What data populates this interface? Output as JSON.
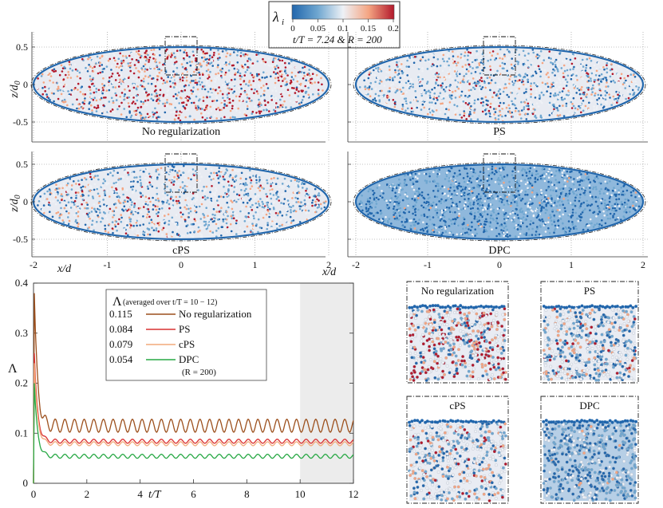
{
  "colorbar": {
    "label": "λ",
    "label_sub": "i",
    "ticks": [
      "0",
      "0.05",
      "0.1",
      "0.15",
      "0.2"
    ],
    "caption": "t/T = 7.24 & R = 200",
    "colors": [
      "#2166ac",
      "#6ea6d0",
      "#eef1f6",
      "#f4a582",
      "#b2182b"
    ]
  },
  "panels": {
    "titles": [
      "No regularization",
      "PS",
      "cPS",
      "DPC"
    ],
    "mean_lambda": [
      0.115,
      0.084,
      0.079,
      0.054
    ],
    "y_ticks": [
      "0.5",
      "0",
      "-0.5"
    ],
    "x_ticks": [
      "-2",
      "-1",
      "0",
      "1",
      "2"
    ],
    "x_label": "x/d",
    "y_label": "z/d",
    "y_label_sub": "0"
  },
  "zoom_titles": [
    "No regularization",
    "PS",
    "cPS",
    "DPC"
  ],
  "chart_data": {
    "type": "line",
    "title": "",
    "xlabel": "t/T",
    "ylabel": "Λ",
    "xlim": [
      0,
      12
    ],
    "ylim": [
      0,
      0.4
    ],
    "x_ticks": [
      "0",
      "2",
      "4",
      "6",
      "8",
      "10",
      "12"
    ],
    "y_ticks": [
      "0",
      "0.1",
      "0.2",
      "0.3",
      "0.4"
    ],
    "shaded_interval": [
      10,
      12
    ],
    "legend_title": "Λ",
    "legend_title_note": "(averaged over t/T = 10 − 12)",
    "legend_note": "(R = 200)",
    "series": [
      {
        "name": "No regularization",
        "label": "0.115",
        "color": "#9c4f1c",
        "mean": 0.115,
        "amplitude": 0.013,
        "peak": 0.38,
        "decay_to": 0.13
      },
      {
        "name": "PS",
        "label": "0.084",
        "color": "#d93030",
        "mean": 0.084,
        "amplitude": 0.004,
        "peak": 0.26,
        "decay_to": 0.09
      },
      {
        "name": "cPS",
        "label": "0.079",
        "color": "#f2a97a",
        "mean": 0.079,
        "amplitude": 0.004,
        "peak": 0.24,
        "decay_to": 0.085
      },
      {
        "name": "DPC",
        "label": "0.054",
        "color": "#27a844",
        "mean": 0.054,
        "amplitude": 0.004,
        "peak": 0.2,
        "decay_to": 0.06
      }
    ],
    "oscillation_period": 0.362
  }
}
